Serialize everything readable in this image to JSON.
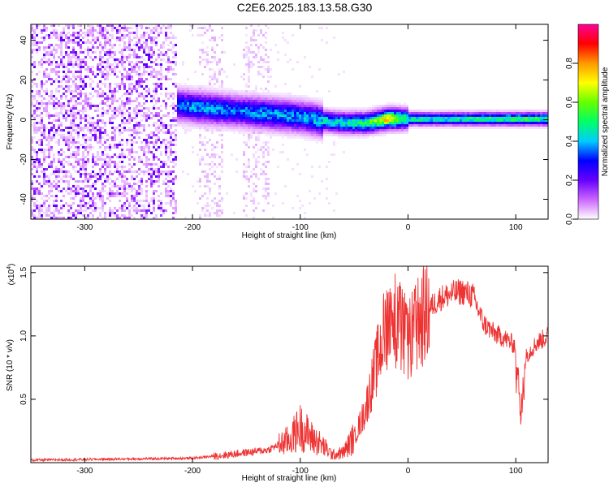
{
  "title": "C2E6.2025.183.13.58.G30",
  "chart_data": [
    {
      "type": "heatmap",
      "xlabel": "Height of straight line (km)",
      "ylabel": "Frequency (Hz)",
      "xlim": [
        -350,
        130
      ],
      "ylim": [
        -50,
        48
      ],
      "xticks": [
        -300,
        -200,
        -100,
        0,
        100
      ],
      "yticks": [
        -40,
        -20,
        0,
        20,
        40
      ],
      "colorbar": {
        "label": "Normalized spectral amplitude",
        "range": [
          0,
          1
        ],
        "ticks": [
          "0.0",
          "0.2",
          "0.4",
          "0.6",
          "0.8"
        ],
        "tick_values": [
          0.0,
          0.2,
          0.4,
          0.6,
          0.8
        ],
        "colors": [
          "#ffffff",
          "#cc66ff",
          "#6600ff",
          "#0000ff",
          "#00ccff",
          "#00ff66",
          "#66ff00",
          "#ffff00",
          "#ff9900",
          "#ff0000",
          "#ff0099"
        ]
      },
      "ridge": {
        "x": [
          -215,
          -200,
          -180,
          -160,
          -140,
          -120,
          -100,
          -80,
          -60,
          -40,
          -20,
          0,
          40,
          80,
          120,
          130
        ],
        "freq": [
          8,
          7,
          6,
          5,
          4,
          3,
          2,
          0,
          -1,
          -1,
          1,
          1,
          1,
          1,
          1,
          1
        ],
        "peak_amplitude": [
          0.4,
          0.45,
          0.45,
          0.4,
          0.45,
          0.45,
          0.45,
          0.5,
          0.55,
          0.6,
          0.85,
          0.55,
          0.55,
          0.6,
          0.6,
          0.6
        ]
      }
    },
    {
      "type": "line",
      "xlabel": "Height of straight line (km)",
      "ylabel": "SNR (10 * v/v)",
      "y_multiplier_label": "(x10",
      "y_multiplier_exp": "4",
      "y_multiplier_close": ")",
      "xlim": [
        -350,
        130
      ],
      "ylim": [
        0,
        1.55
      ],
      "xticks": [
        -300,
        -200,
        -100,
        0,
        100
      ],
      "yticks": [
        0.5,
        1.0,
        1.5
      ],
      "ytick_labels": [
        "0.5",
        "1.0",
        "1.5"
      ],
      "color": "#ee3333",
      "series": [
        {
          "x": [
            -350,
            -300,
            -250,
            -200,
            -170,
            -150,
            -130,
            -110,
            -100,
            -90,
            -80,
            -70,
            -60,
            -50,
            -40,
            -30,
            -20,
            -15,
            -10,
            0,
            10,
            20,
            30,
            40,
            50,
            60,
            70,
            80,
            90,
            100,
            105,
            110,
            120,
            130
          ],
          "values": [
            0.02,
            0.025,
            0.03,
            0.035,
            0.06,
            0.08,
            0.1,
            0.18,
            0.28,
            0.2,
            0.14,
            0.06,
            0.08,
            0.2,
            0.4,
            0.75,
            1.1,
            1.2,
            1.1,
            0.95,
            1.1,
            1.22,
            1.3,
            1.33,
            1.35,
            1.32,
            1.1,
            1.02,
            0.98,
            0.92,
            0.6,
            0.85,
            0.95,
            1.0
          ]
        }
      ]
    }
  ]
}
